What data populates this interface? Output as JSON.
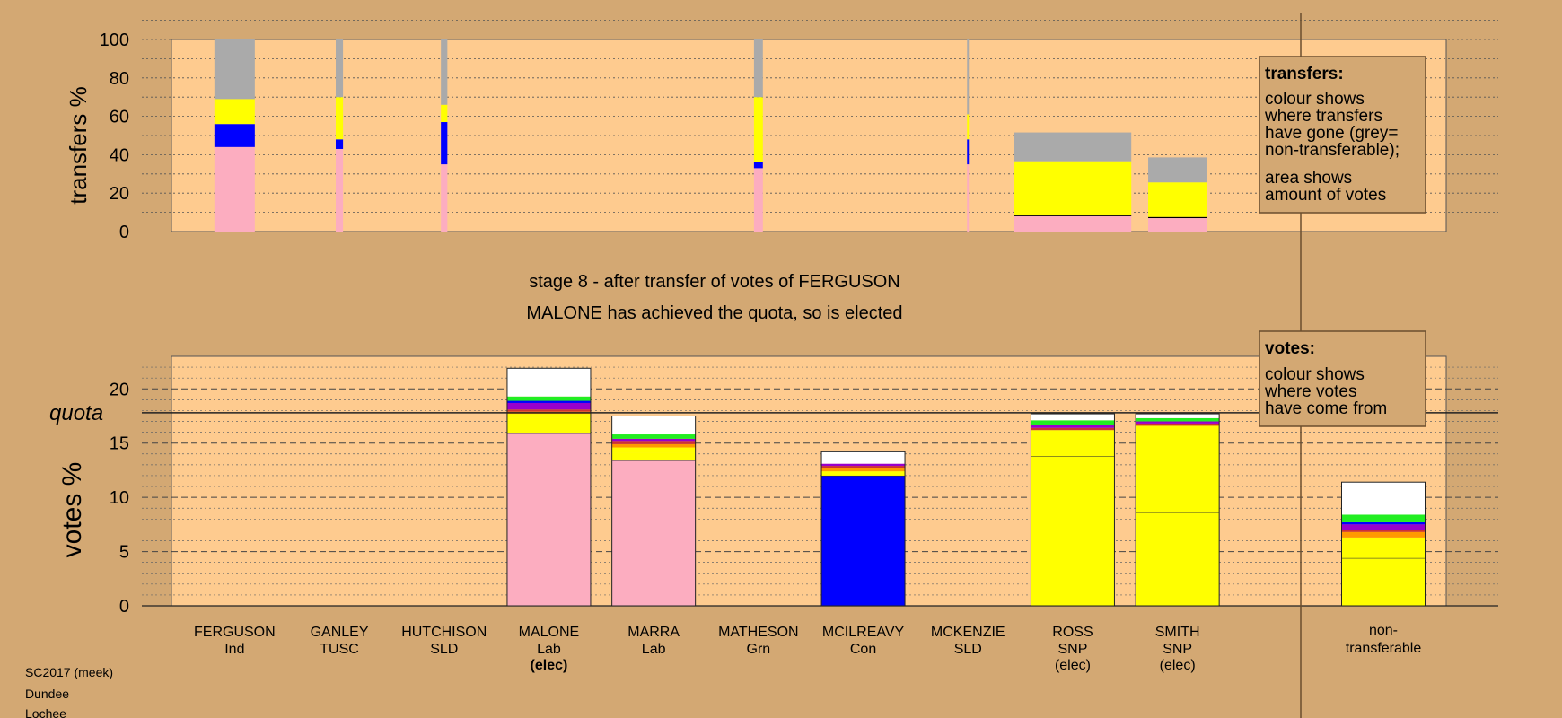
{
  "colors": {
    "background": "#d3a873",
    "plot_background": "#fecb8f",
    "pink": "#fcadc0",
    "yellow": "#ffff00",
    "blue": "#0000ff",
    "grey": "#aaaaaa",
    "white": "#ffffff",
    "green": "#22ee22",
    "purple": "#9900cc",
    "orange": "#ff9900",
    "red": "#cc3333"
  },
  "stage_title": "stage 8 - after transfer of votes of FERGUSON",
  "stage_note": "MALONE has achieved the quota, so is elected",
  "source_lines": [
    "SC2017 (meek)",
    "Dundee",
    "Lochee"
  ],
  "transfers_legend": {
    "title": "transfers:",
    "lines": [
      "colour shows",
      "where transfers",
      "have gone (grey=",
      "non-transferable);"
    ],
    "lines2": [
      "area shows",
      "amount of votes"
    ]
  },
  "votes_legend": {
    "title": "votes:",
    "lines": [
      "colour shows",
      "where votes",
      "have come from"
    ]
  },
  "chart_data": [
    {
      "type": "bar",
      "name": "transfers",
      "ylabel": "transfers %",
      "ylim": [
        0,
        100
      ],
      "yticks": [
        0,
        20,
        40,
        60,
        80,
        100
      ],
      "grid": true,
      "bars": [
        {
          "candidate": "FERGUSON",
          "amount": 1.0,
          "segments": [
            {
              "color": "pink",
              "value": 44
            },
            {
              "color": "blue",
              "value": 12
            },
            {
              "color": "yellow",
              "value": 13
            },
            {
              "color": "grey",
              "value": 31
            }
          ]
        },
        {
          "candidate": "GANLEY",
          "amount": 0.18,
          "segments": [
            {
              "color": "pink",
              "value": 43
            },
            {
              "color": "blue",
              "value": 5
            },
            {
              "color": "yellow",
              "value": 22
            },
            {
              "color": "grey",
              "value": 30
            }
          ]
        },
        {
          "candidate": "HUTCHISON",
          "amount": 0.16,
          "segments": [
            {
              "color": "pink",
              "value": 35
            },
            {
              "color": "blue",
              "value": 22
            },
            {
              "color": "yellow",
              "value": 9
            },
            {
              "color": "grey",
              "value": 34
            }
          ]
        },
        {
          "candidate": "MATHESON",
          "amount": 0.22,
          "segments": [
            {
              "color": "pink",
              "value": 33
            },
            {
              "color": "blue",
              "value": 3
            },
            {
              "color": "yellow",
              "value": 34
            },
            {
              "color": "grey",
              "value": 30
            }
          ]
        },
        {
          "candidate": "MCKENZIE",
          "amount": 0.04,
          "segments": [
            {
              "color": "pink",
              "value": 35
            },
            {
              "color": "blue",
              "value": 13
            },
            {
              "color": "yellow",
              "value": 13
            },
            {
              "color": "grey",
              "value": 39
            }
          ]
        },
        {
          "candidate": "ROSS",
          "amount": 2.9,
          "segments": [
            {
              "color": "pink",
              "value": 8
            },
            {
              "color": "black",
              "value": 0.6
            },
            {
              "color": "yellow",
              "value": 28
            },
            {
              "color": "grey",
              "value": 15
            }
          ]
        },
        {
          "candidate": "SMITH",
          "amount": 1.45,
          "segments": [
            {
              "color": "pink",
              "value": 7
            },
            {
              "color": "black",
              "value": 0.6
            },
            {
              "color": "yellow",
              "value": 18
            },
            {
              "color": "grey",
              "value": 13
            }
          ]
        }
      ]
    },
    {
      "type": "bar",
      "name": "votes",
      "ylabel": "votes %",
      "ylim": [
        0,
        23
      ],
      "yticks": [
        0,
        5,
        10,
        15,
        20
      ],
      "quota": 17.8,
      "quota_label": "quota",
      "grid": true,
      "categories": [
        {
          "name": "FERGUSON",
          "party": "Ind",
          "elected": false
        },
        {
          "name": "GANLEY",
          "party": "TUSC",
          "elected": false
        },
        {
          "name": "HUTCHISON",
          "party": "SLD",
          "elected": false
        },
        {
          "name": "MALONE",
          "party": "Lab",
          "elected": true
        },
        {
          "name": "MARRA",
          "party": "Lab",
          "elected": false
        },
        {
          "name": "MATHESON",
          "party": "Grn",
          "elected": false
        },
        {
          "name": "MCILREAVY",
          "party": "Con",
          "elected": false
        },
        {
          "name": "MCKENZIE",
          "party": "SLD",
          "elected": false
        },
        {
          "name": "ROSS",
          "party": "SNP",
          "elected": true
        },
        {
          "name": "SMITH",
          "party": "SNP",
          "elected": true
        }
      ],
      "elected_label": "(elec)",
      "nontransferable_label": [
        "non-",
        "transferable"
      ],
      "stacks": [
        [],
        [],
        [],
        [
          {
            "color": "pink",
            "value": 15.9,
            "line": true
          },
          {
            "color": "yellow",
            "value": 1.4
          },
          {
            "color": "yellow",
            "value": 0.4
          },
          {
            "color": "orange",
            "value": 0.2
          },
          {
            "color": "red",
            "value": 0.2
          },
          {
            "color": "purple",
            "value": 0.6
          },
          {
            "color": "blue",
            "value": 0.2
          },
          {
            "color": "green",
            "value": 0.4
          },
          {
            "color": "white",
            "value": 2.6
          }
        ],
        [
          {
            "color": "pink",
            "value": 13.4,
            "line": true
          },
          {
            "color": "yellow",
            "value": 0.7
          },
          {
            "color": "yellow",
            "value": 0.5
          },
          {
            "color": "orange",
            "value": 0.3
          },
          {
            "color": "red",
            "value": 0.3
          },
          {
            "color": "purple",
            "value": 0.2
          },
          {
            "color": "green",
            "value": 0.4
          },
          {
            "color": "white",
            "value": 1.7
          }
        ],
        [],
        [
          {
            "color": "blue",
            "value": 12.0,
            "line": true
          },
          {
            "color": "yellow",
            "value": 0.4
          },
          {
            "color": "orange",
            "value": 0.3
          },
          {
            "color": "red",
            "value": 0.2
          },
          {
            "color": "purple",
            "value": 0.2
          },
          {
            "color": "white",
            "value": 1.1
          }
        ],
        [],
        [
          {
            "color": "yellow",
            "value": 13.8,
            "line": true
          },
          {
            "color": "yellow",
            "value": 2.4
          },
          {
            "color": "red",
            "value": 0.2
          },
          {
            "color": "purple",
            "value": 0.3
          },
          {
            "color": "green",
            "value": 0.4
          },
          {
            "color": "white",
            "value": 0.6
          }
        ],
        [
          {
            "color": "yellow",
            "value": 8.6,
            "line": true
          },
          {
            "color": "yellow",
            "value": 8.0
          },
          {
            "color": "red",
            "value": 0.2
          },
          {
            "color": "purple",
            "value": 0.2
          },
          {
            "color": "green",
            "value": 0.3
          },
          {
            "color": "white",
            "value": 0.4
          }
        ]
      ],
      "nontransferable": [
        {
          "color": "yellow",
          "value": 4.4,
          "line": true
        },
        {
          "color": "yellow",
          "value": 1.9
        },
        {
          "color": "orange",
          "value": 0.5
        },
        {
          "color": "red",
          "value": 0.2
        },
        {
          "color": "purple",
          "value": 0.5
        },
        {
          "color": "blue",
          "value": 0.2
        },
        {
          "color": "green",
          "value": 0.7
        },
        {
          "color": "white",
          "value": 3.0
        }
      ]
    }
  ]
}
